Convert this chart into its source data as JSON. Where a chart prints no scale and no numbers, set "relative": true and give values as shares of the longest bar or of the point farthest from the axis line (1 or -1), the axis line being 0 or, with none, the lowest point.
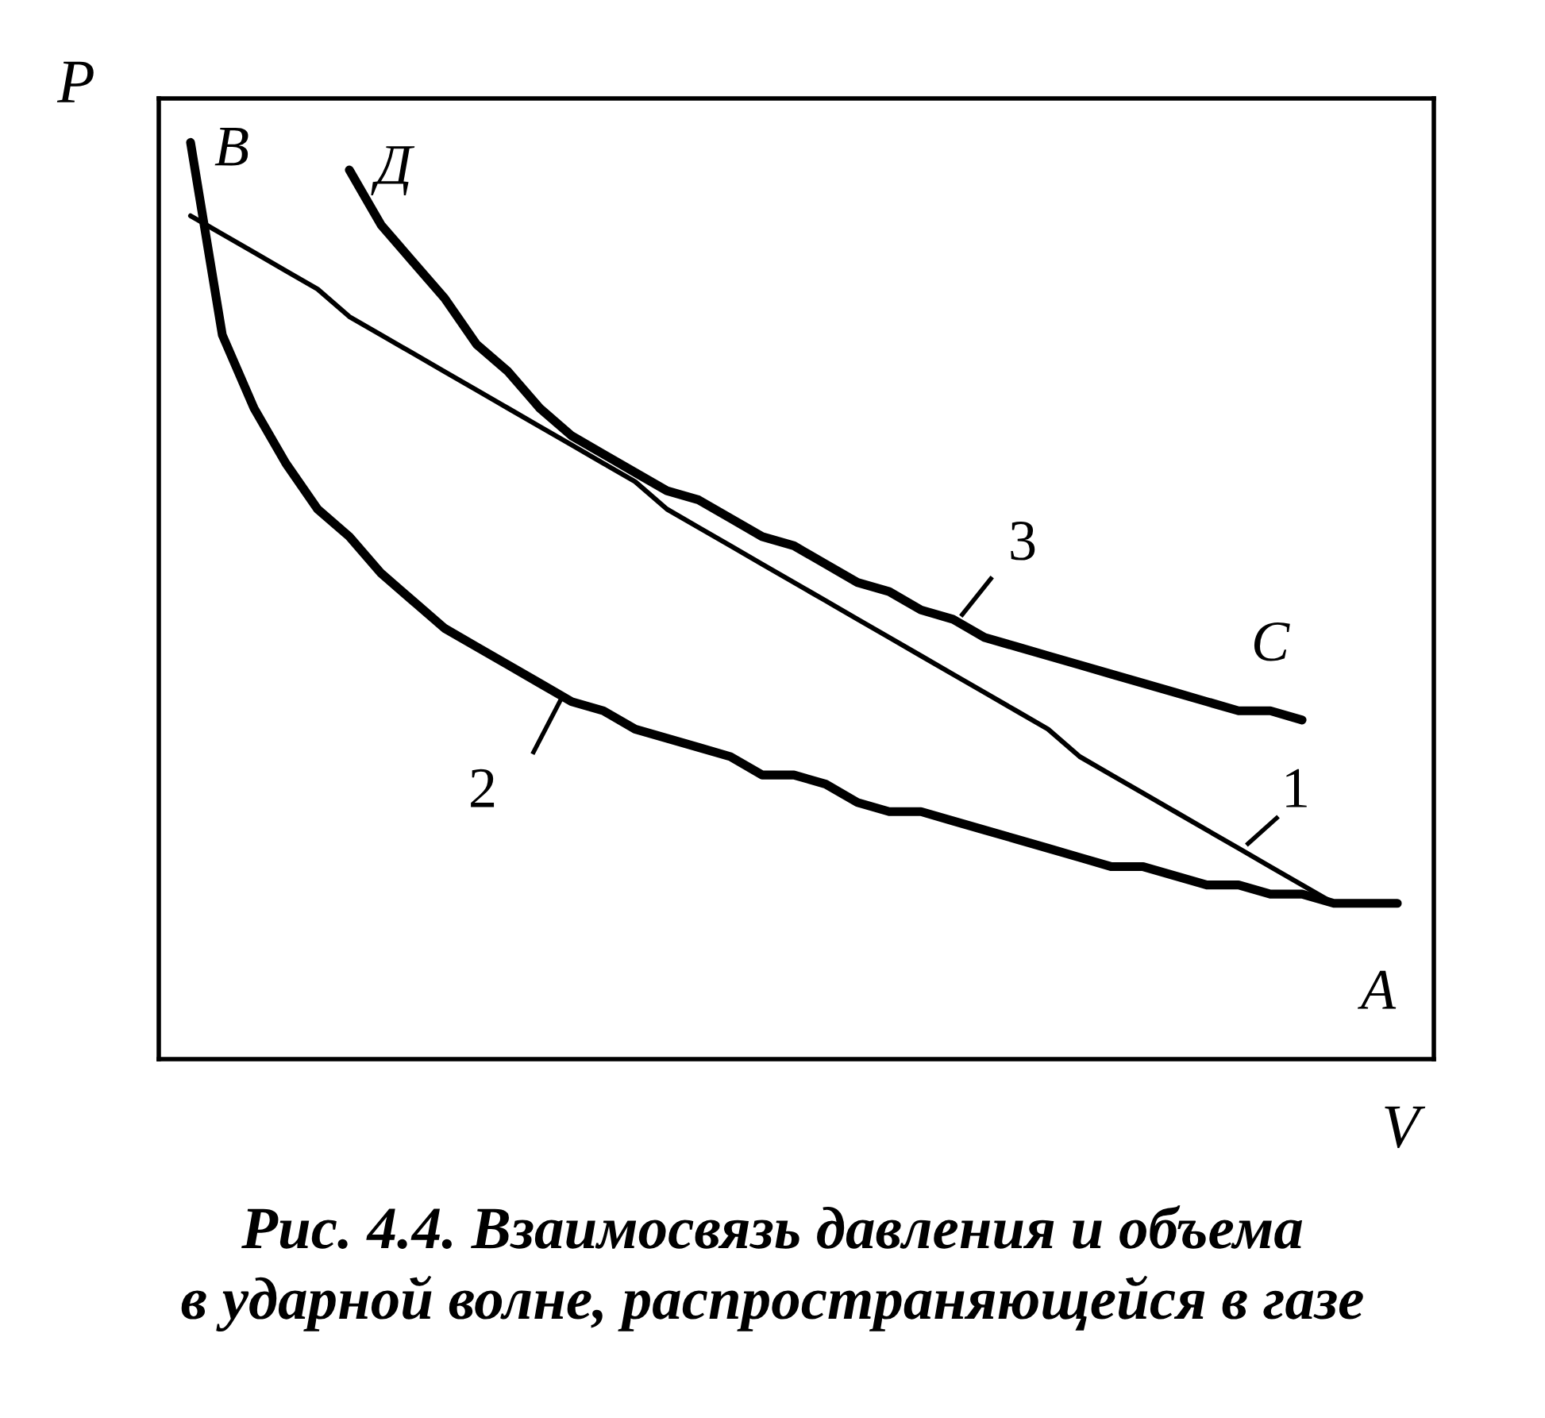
{
  "chart_data": {
    "type": "line",
    "relative": true,
    "xlabel": "V",
    "ylabel": "P",
    "marker": "none",
    "line_style": "solid",
    "categories": [
      null,
      null,
      null,
      null,
      null,
      null,
      null,
      null,
      null,
      null,
      null,
      null,
      null,
      null,
      null,
      null,
      null,
      null,
      null,
      null,
      null,
      null,
      null,
      null,
      null,
      null,
      null,
      null,
      null,
      null,
      null,
      null,
      null,
      null,
      null,
      null,
      null,
      null,
      null,
      null,
      null
    ],
    "series": [
      {
        "name": "1",
        "color": "#000000",
        "values": [
          null,
          0.92,
          0.9,
          0.88,
          0.86,
          0.84,
          0.81,
          0.79,
          0.77,
          0.75,
          0.73,
          0.71,
          0.69,
          0.67,
          0.65,
          0.63,
          0.6,
          0.58,
          0.56,
          0.54,
          0.52,
          0.5,
          0.48,
          0.46,
          0.44,
          0.42,
          0.4,
          0.38,
          0.36,
          0.33,
          0.31,
          0.29,
          0.27,
          0.25,
          0.23,
          0.21,
          0.19,
          0.17,
          null,
          null,
          null
        ]
      },
      {
        "name": "2",
        "color": "#000000",
        "values": [
          null,
          1.0,
          0.79,
          0.71,
          0.65,
          0.6,
          0.57,
          0.53,
          0.5,
          0.47,
          0.45,
          0.43,
          0.41,
          0.39,
          0.38,
          0.36,
          0.35,
          0.34,
          0.33,
          0.31,
          0.31,
          0.3,
          0.28,
          0.27,
          0.27,
          0.26,
          0.25,
          0.24,
          0.23,
          0.22,
          0.21,
          0.21,
          0.2,
          0.19,
          0.19,
          0.18,
          0.18,
          0.17,
          0.17,
          0.17,
          null
        ]
      },
      {
        "name": "3",
        "color": "#000000",
        "values": [
          null,
          null,
          null,
          null,
          null,
          null,
          0.97,
          0.91,
          0.87,
          0.83,
          0.78,
          0.75,
          0.71,
          0.68,
          0.66,
          0.64,
          0.62,
          0.61,
          0.59,
          0.57,
          0.56,
          0.54,
          0.52,
          0.51,
          0.49,
          0.48,
          0.46,
          0.45,
          0.44,
          0.43,
          0.42,
          0.41,
          0.4,
          0.39,
          0.38,
          0.38,
          0.37,
          null,
          null,
          null,
          null
        ]
      }
    ],
    "annotations": [
      "В",
      "Д",
      "С",
      "А",
      "Рис. 4.4. Взаимосвязь давления и объема\nв ударной волне, распространяющейся в газе"
    ]
  }
}
